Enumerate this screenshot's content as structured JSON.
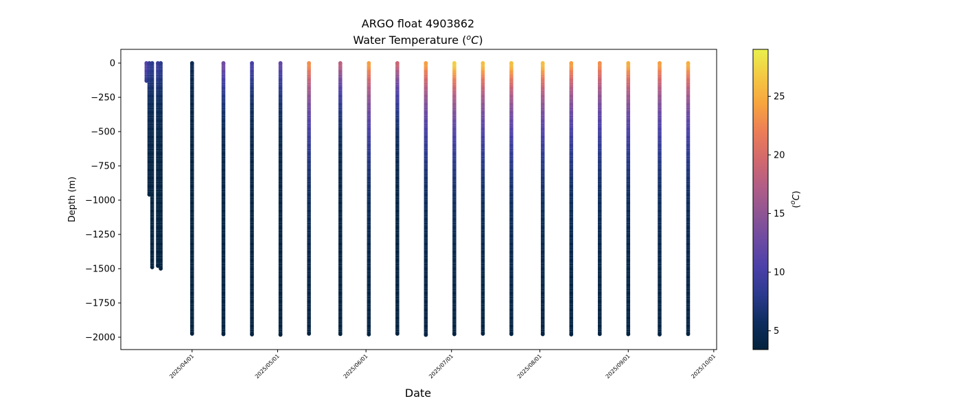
{
  "chart_data": {
    "type": "scatter",
    "title": "ARGO float 4903862",
    "subtitle": "Water Temperature (",
    "subtitle_unit": "oC",
    "subtitle_close": ")",
    "xlabel": "Date",
    "ylabel": "Depth (m)",
    "ylim": [
      -2090,
      100
    ],
    "xlim": [
      "2025-03-07",
      "2025-10-02"
    ],
    "y_ticks": [
      0,
      -250,
      -500,
      -750,
      -1000,
      -1250,
      -1500,
      -1750,
      -2000
    ],
    "y_tick_labels": [
      "0",
      "−250",
      "−500",
      "−750",
      "−1000",
      "−1250",
      "−1500",
      "−1750",
      "−2000"
    ],
    "x_ticks": [
      "2025-04-01",
      "2025-05-01",
      "2025-06-01",
      "2025-07-01",
      "2025-08-01",
      "2025-09-01",
      "2025-10-01"
    ],
    "x_tick_labels": [
      "2025/04/01",
      "2025/05/01",
      "2025/06/01",
      "2025/07/01",
      "2025/08/01",
      "2025/09/01",
      "2025/10/01"
    ],
    "colorbar": {
      "label_open": "(",
      "label_unit": "oC",
      "label_close": ")",
      "range": [
        3.4,
        29
      ],
      "ticks": [
        5,
        10,
        15,
        20,
        25
      ],
      "tick_labels": [
        "5",
        "10",
        "15",
        "20",
        "25"
      ],
      "colormap": "thermal",
      "stops": [
        "#03223d",
        "#0e2d5e",
        "#2b3a8d",
        "#4a40a8",
        "#6c4aa3",
        "#8f5593",
        "#b35e86",
        "#d3696c",
        "#ec7e57",
        "#f7a43e",
        "#f4c843",
        "#e9f14c"
      ]
    },
    "profiles": [
      {
        "date": "2025-03-16",
        "max_depth": -130,
        "sst": 11,
        "mixed_depth": 30
      },
      {
        "date": "2025-03-17",
        "max_depth": -960,
        "sst": 9,
        "mixed_depth": 40
      },
      {
        "date": "2025-03-18",
        "max_depth": -1490,
        "sst": 8,
        "mixed_depth": 50
      },
      {
        "date": "2025-03-20",
        "max_depth": -1480,
        "sst": 9,
        "mixed_depth": 50
      },
      {
        "date": "2025-03-21",
        "max_depth": -1500,
        "sst": 8,
        "mixed_depth": 60
      },
      {
        "date": "2025-04-01",
        "max_depth": -1975,
        "sst": 5,
        "mixed_depth": 10
      },
      {
        "date": "2025-04-12",
        "max_depth": -1978,
        "sst": 13,
        "mixed_depth": 30
      },
      {
        "date": "2025-04-22",
        "max_depth": -1980,
        "sst": 10,
        "mixed_depth": 40
      },
      {
        "date": "2025-05-02",
        "max_depth": -1982,
        "sst": 12,
        "mixed_depth": 20
      },
      {
        "date": "2025-05-12",
        "max_depth": -1975,
        "sst": 23,
        "mixed_depth": 20
      },
      {
        "date": "2025-05-23",
        "max_depth": -1977,
        "sst": 18,
        "mixed_depth": 20
      },
      {
        "date": "2025-06-02",
        "max_depth": -1980,
        "sst": 24,
        "mixed_depth": 20
      },
      {
        "date": "2025-06-12",
        "max_depth": -1975,
        "sst": 19,
        "mixed_depth": 20
      },
      {
        "date": "2025-06-22",
        "max_depth": -1983,
        "sst": 24,
        "mixed_depth": 20
      },
      {
        "date": "2025-07-02",
        "max_depth": -1978,
        "sst": 27,
        "mixed_depth": 20
      },
      {
        "date": "2025-07-12",
        "max_depth": -1975,
        "sst": 26,
        "mixed_depth": 20
      },
      {
        "date": "2025-07-22",
        "max_depth": -1977,
        "sst": 26,
        "mixed_depth": 20
      },
      {
        "date": "2025-08-02",
        "max_depth": -1978,
        "sst": 26,
        "mixed_depth": 20
      },
      {
        "date": "2025-08-12",
        "max_depth": -1980,
        "sst": 24,
        "mixed_depth": 20
      },
      {
        "date": "2025-08-22",
        "max_depth": -1977,
        "sst": 23,
        "mixed_depth": 20
      },
      {
        "date": "2025-09-01",
        "max_depth": -1978,
        "sst": 25,
        "mixed_depth": 20
      },
      {
        "date": "2025-09-12",
        "max_depth": -1980,
        "sst": 24,
        "mixed_depth": 20
      },
      {
        "date": "2025-09-22",
        "max_depth": -1977,
        "sst": 25,
        "mixed_depth": 20
      }
    ]
  }
}
